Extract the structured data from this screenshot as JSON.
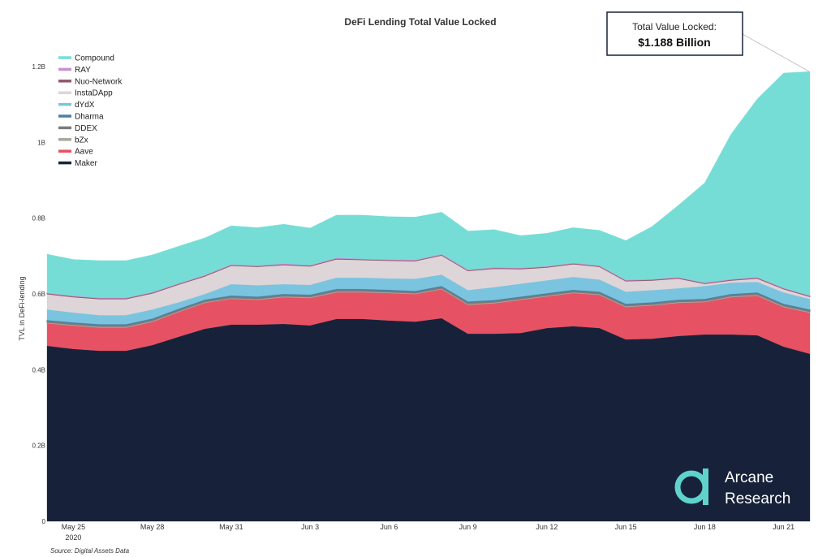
{
  "chart_data": {
    "type": "area",
    "stacked": true,
    "title": "DeFi Lending Total Value Locked",
    "ylabel": "TVL in DeFi-lending",
    "xlabel": "",
    "unit": "USD millions",
    "ylim": [
      0,
      1200
    ],
    "yticks": [
      {
        "value": 0,
        "label": "0"
      },
      {
        "value": 200,
        "label": "0.2B"
      },
      {
        "value": 400,
        "label": "0.4B"
      },
      {
        "value": 600,
        "label": "0.6B"
      },
      {
        "value": 800,
        "label": "0.8B"
      },
      {
        "value": 1000,
        "label": "1B"
      },
      {
        "value": 1200,
        "label": "1.2B"
      }
    ],
    "x": [
      "2020-05-24",
      "2020-05-25",
      "2020-05-26",
      "2020-05-27",
      "2020-05-28",
      "2020-05-29",
      "2020-05-30",
      "2020-05-31",
      "2020-06-01",
      "2020-06-02",
      "2020-06-03",
      "2020-06-04",
      "2020-06-05",
      "2020-06-06",
      "2020-06-07",
      "2020-06-08",
      "2020-06-09",
      "2020-06-10",
      "2020-06-11",
      "2020-06-12",
      "2020-06-13",
      "2020-06-14",
      "2020-06-15",
      "2020-06-16",
      "2020-06-17",
      "2020-06-18",
      "2020-06-19",
      "2020-06-20",
      "2020-06-21",
      "2020-06-22"
    ],
    "xticks": [
      {
        "date": "2020-05-25",
        "label": "May 25",
        "sublabel": "2020"
      },
      {
        "date": "2020-05-28",
        "label": "May 28"
      },
      {
        "date": "2020-05-31",
        "label": "May 31"
      },
      {
        "date": "2020-06-03",
        "label": "Jun 3"
      },
      {
        "date": "2020-06-06",
        "label": "Jun 6"
      },
      {
        "date": "2020-06-09",
        "label": "Jun 9"
      },
      {
        "date": "2020-06-12",
        "label": "Jun 12"
      },
      {
        "date": "2020-06-15",
        "label": "Jun 15"
      },
      {
        "date": "2020-06-18",
        "label": "Jun 18"
      },
      {
        "date": "2020-06-21",
        "label": "Jun 21"
      }
    ],
    "series": [
      {
        "name": "Maker",
        "color": "#17223a",
        "values": [
          463,
          455,
          450,
          450,
          465,
          487,
          508,
          519,
          519,
          521,
          517,
          534,
          534,
          530,
          527,
          536,
          495,
          495,
          497,
          510,
          515,
          510,
          480,
          482,
          489,
          493,
          493,
          491,
          461,
          442
        ]
      },
      {
        "name": "Aave",
        "color": "#e65263",
        "values": [
          60,
          62,
          62,
          62,
          62,
          66,
          69,
          69,
          66,
          71,
          73,
          71,
          71,
          73,
          73,
          77,
          77,
          81,
          88,
          84,
          88,
          88,
          86,
          88,
          88,
          86,
          99,
          105,
          105,
          109
        ]
      },
      {
        "name": "bZx",
        "color": "#a8a8a0",
        "values": [
          2,
          2,
          2,
          2,
          2,
          2,
          2,
          2,
          2,
          2,
          2,
          2,
          2,
          2,
          2,
          2,
          2,
          2,
          2,
          2,
          2,
          2,
          2,
          2,
          2,
          2,
          2,
          2,
          2,
          2
        ]
      },
      {
        "name": "DDEX",
        "color": "#7b7b7b",
        "values": [
          4,
          4,
          4,
          4,
          4,
          4,
          4,
          4,
          4,
          4,
          4,
          4,
          4,
          4,
          4,
          4,
          4,
          4,
          4,
          4,
          4,
          4,
          4,
          4,
          4,
          4,
          4,
          4,
          4,
          4
        ]
      },
      {
        "name": "Dharma",
        "color": "#4f7fa3",
        "values": [
          2,
          2,
          2,
          2,
          2,
          2,
          2,
          2,
          2,
          2,
          2,
          2,
          2,
          2,
          2,
          2,
          2,
          2,
          2,
          2,
          2,
          2,
          2,
          2,
          2,
          2,
          2,
          2,
          2,
          2
        ]
      },
      {
        "name": "dYdX",
        "color": "#7ac4df",
        "values": [
          28,
          26,
          24,
          24,
          24,
          17,
          15,
          30,
          30,
          26,
          26,
          30,
          30,
          30,
          32,
          30,
          30,
          34,
          34,
          34,
          34,
          32,
          32,
          32,
          30,
          34,
          30,
          28,
          30,
          28
        ]
      },
      {
        "name": "InstaDApp",
        "color": "#ddd5d7",
        "values": [
          41,
          41,
          43,
          43,
          43,
          47,
          47,
          49,
          49,
          51,
          49,
          49,
          47,
          47,
          47,
          51,
          51,
          49,
          39,
          34,
          34,
          34,
          28,
          26,
          26,
          6,
          6,
          9,
          9,
          6
        ]
      },
      {
        "name": "Nuo-Network",
        "color": "#8e5a6a",
        "values": [
          2,
          2,
          2,
          2,
          2,
          2,
          2,
          2,
          2,
          2,
          2,
          2,
          2,
          2,
          2,
          2,
          2,
          2,
          2,
          2,
          2,
          2,
          2,
          2,
          2,
          2,
          2,
          2,
          2,
          2
        ]
      },
      {
        "name": "RAY",
        "color": "#c98fd3",
        "values": [
          1,
          1,
          1,
          1,
          1,
          1,
          1,
          1,
          1,
          1,
          1,
          1,
          1,
          1,
          1,
          1,
          1,
          1,
          1,
          1,
          1,
          1,
          1,
          1,
          1,
          1,
          1,
          1,
          1,
          1
        ]
      },
      {
        "name": "Compound",
        "color": "#76ddd6",
        "values": [
          102,
          96,
          98,
          98,
          98,
          98,
          98,
          102,
          100,
          104,
          98,
          113,
          115,
          113,
          113,
          111,
          102,
          100,
          85,
          87,
          93,
          93,
          104,
          139,
          190,
          263,
          383,
          471,
          567,
          591
        ]
      }
    ],
    "legend_order": [
      "Compound",
      "RAY",
      "Nuo-Network",
      "InstaDApp",
      "dYdX",
      "Dharma",
      "DDEX",
      "bZx",
      "Aave",
      "Maker"
    ],
    "legend_position": "top-left",
    "grid": false,
    "annotation": {
      "label": "Total Value Locked:",
      "value": "$1.188 Billion"
    }
  },
  "source": "Source: Digital Assets Data",
  "logo": {
    "line1": "Arcane",
    "line2": "Research",
    "color": "#5fd3cb"
  }
}
